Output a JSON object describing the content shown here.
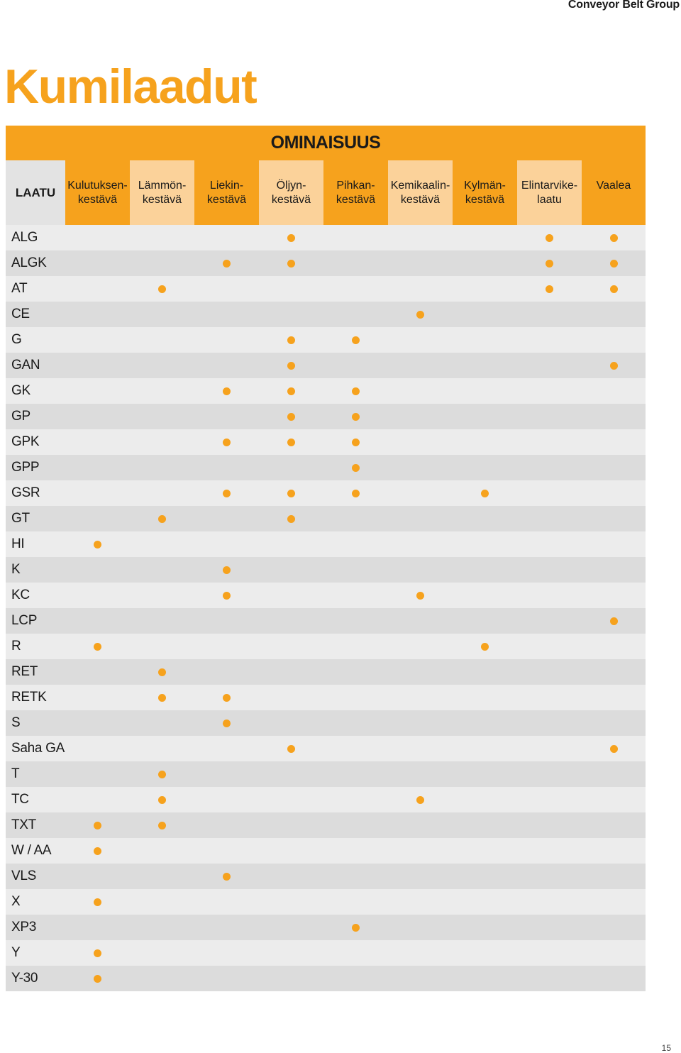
{
  "brand": "Conveyor Belt Group",
  "title": "Kumilaadut",
  "feature_band": "OMINAISUUS",
  "quality_header": "LAATU",
  "columns": [
    {
      "line1": "Kulutuksen-",
      "line2": "kestävä"
    },
    {
      "line1": "Lämmön-",
      "line2": "kestävä"
    },
    {
      "line1": "Liekin-",
      "line2": "kestävä"
    },
    {
      "line1": "Öljyn-",
      "line2": "kestävä"
    },
    {
      "line1": "Pihkan-",
      "line2": "kestävä"
    },
    {
      "line1": "Kemikaalin-",
      "line2": "kestävä"
    },
    {
      "line1": "Kylmän-",
      "line2": "kestävä"
    },
    {
      "line1": "Elintarvike-",
      "line2": "laatu"
    },
    {
      "line1": "Vaalea",
      "line2": ""
    }
  ],
  "rows": [
    {
      "name": "ALG",
      "marks": [
        0,
        0,
        0,
        1,
        0,
        0,
        0,
        1,
        1
      ]
    },
    {
      "name": "ALGK",
      "marks": [
        0,
        0,
        1,
        1,
        0,
        0,
        0,
        1,
        1
      ]
    },
    {
      "name": "AT",
      "marks": [
        0,
        1,
        0,
        0,
        0,
        0,
        0,
        1,
        1
      ]
    },
    {
      "name": "CE",
      "marks": [
        0,
        0,
        0,
        0,
        0,
        1,
        0,
        0,
        0
      ]
    },
    {
      "name": "G",
      "marks": [
        0,
        0,
        0,
        1,
        1,
        0,
        0,
        0,
        0
      ]
    },
    {
      "name": "GAN",
      "marks": [
        0,
        0,
        0,
        1,
        0,
        0,
        0,
        0,
        1
      ]
    },
    {
      "name": "GK",
      "marks": [
        0,
        0,
        1,
        1,
        1,
        0,
        0,
        0,
        0
      ]
    },
    {
      "name": "GP",
      "marks": [
        0,
        0,
        0,
        1,
        1,
        0,
        0,
        0,
        0
      ]
    },
    {
      "name": "GPK",
      "marks": [
        0,
        0,
        1,
        1,
        1,
        0,
        0,
        0,
        0
      ]
    },
    {
      "name": "GPP",
      "marks": [
        0,
        0,
        0,
        0,
        1,
        0,
        0,
        0,
        0
      ]
    },
    {
      "name": "GSR",
      "marks": [
        0,
        0,
        1,
        1,
        1,
        0,
        1,
        0,
        0
      ]
    },
    {
      "name": "GT",
      "marks": [
        0,
        1,
        0,
        1,
        0,
        0,
        0,
        0,
        0
      ]
    },
    {
      "name": "HI",
      "marks": [
        1,
        0,
        0,
        0,
        0,
        0,
        0,
        0,
        0
      ]
    },
    {
      "name": "K",
      "marks": [
        0,
        0,
        1,
        0,
        0,
        0,
        0,
        0,
        0
      ]
    },
    {
      "name": "KC",
      "marks": [
        0,
        0,
        1,
        0,
        0,
        1,
        0,
        0,
        0
      ]
    },
    {
      "name": "LCP",
      "marks": [
        0,
        0,
        0,
        0,
        0,
        0,
        0,
        0,
        1
      ]
    },
    {
      "name": "R",
      "marks": [
        1,
        0,
        0,
        0,
        0,
        0,
        1,
        0,
        0
      ]
    },
    {
      "name": "RET",
      "marks": [
        0,
        1,
        0,
        0,
        0,
        0,
        0,
        0,
        0
      ]
    },
    {
      "name": "RETK",
      "marks": [
        0,
        1,
        1,
        0,
        0,
        0,
        0,
        0,
        0
      ]
    },
    {
      "name": "S",
      "marks": [
        0,
        0,
        1,
        0,
        0,
        0,
        0,
        0,
        0
      ]
    },
    {
      "name": "Saha GA",
      "marks": [
        0,
        0,
        0,
        1,
        0,
        0,
        0,
        0,
        1
      ]
    },
    {
      "name": "T",
      "marks": [
        0,
        1,
        0,
        0,
        0,
        0,
        0,
        0,
        0
      ]
    },
    {
      "name": "TC",
      "marks": [
        0,
        1,
        0,
        0,
        0,
        1,
        0,
        0,
        0
      ]
    },
    {
      "name": "TXT",
      "marks": [
        1,
        1,
        0,
        0,
        0,
        0,
        0,
        0,
        0
      ]
    },
    {
      "name": "W / AA",
      "marks": [
        1,
        0,
        0,
        0,
        0,
        0,
        0,
        0,
        0
      ]
    },
    {
      "name": "VLS",
      "marks": [
        0,
        0,
        1,
        0,
        0,
        0,
        0,
        0,
        0
      ]
    },
    {
      "name": "X",
      "marks": [
        1,
        0,
        0,
        0,
        0,
        0,
        0,
        0,
        0
      ]
    },
    {
      "name": "XP3",
      "marks": [
        0,
        0,
        0,
        0,
        1,
        0,
        0,
        0,
        0
      ]
    },
    {
      "name": "Y",
      "marks": [
        1,
        0,
        0,
        0,
        0,
        0,
        0,
        0,
        0
      ]
    },
    {
      "name": "Y-30",
      "marks": [
        1,
        0,
        0,
        0,
        0,
        0,
        0,
        0,
        0
      ]
    }
  ],
  "colors": {
    "accent": "#f6a21d",
    "accent_light": "#fbd29a",
    "row_light": "#ececec",
    "row_dark": "#dcdcdc"
  },
  "page_number": "15"
}
